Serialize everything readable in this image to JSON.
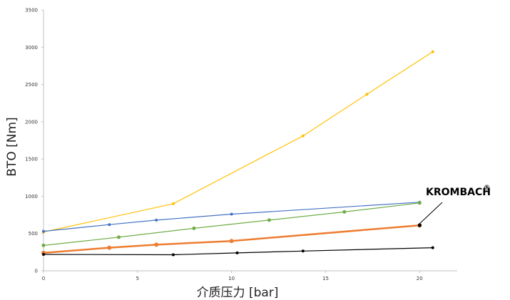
{
  "chart_data": {
    "type": "line",
    "title": "",
    "xlabel": "介质压力 [bar]",
    "ylabel": "BTO [Nm]",
    "xlim": [
      0,
      22
    ],
    "ylim": [
      0,
      3500
    ],
    "xticks": [
      "0",
      "5",
      "10",
      "15",
      "20"
    ],
    "yticks": [
      "0",
      "500",
      "1000",
      "1500",
      "2000",
      "2500",
      "3000",
      "3500"
    ],
    "grid": false,
    "legend": "none",
    "annotation": {
      "text": "KROMBACH",
      "mark": "®"
    },
    "series": [
      {
        "color": "#FFC000",
        "stroke_width": 1.2,
        "marker_r": 2,
        "x": [
          0,
          6.9,
          13.8,
          17.2,
          20.7
        ],
        "y": [
          520,
          900,
          1810,
          2370,
          2940
        ]
      },
      {
        "color": "#4472C4",
        "stroke_width": 1.2,
        "marker_r": 2,
        "x": [
          0,
          3.5,
          6,
          10,
          20
        ],
        "y": [
          530,
          620,
          680,
          760,
          920
        ]
      },
      {
        "color": "#70AD47",
        "stroke_width": 1.2,
        "marker_r": 2.5,
        "x": [
          0,
          4,
          8,
          12,
          16,
          20
        ],
        "y": [
          340,
          450,
          570,
          680,
          790,
          910
        ]
      },
      {
        "color": "#ED7D31",
        "stroke_width": 2.5,
        "marker_r": 3,
        "x": [
          0,
          3.5,
          6,
          10,
          20
        ],
        "y": [
          240,
          310,
          350,
          400,
          610
        ]
      },
      {
        "color": "#000000",
        "stroke_width": 1.2,
        "marker_r": 2,
        "x": [
          0,
          6.9,
          10.3,
          13.8,
          20.7
        ],
        "y": [
          220,
          215,
          240,
          265,
          310
        ]
      }
    ]
  }
}
